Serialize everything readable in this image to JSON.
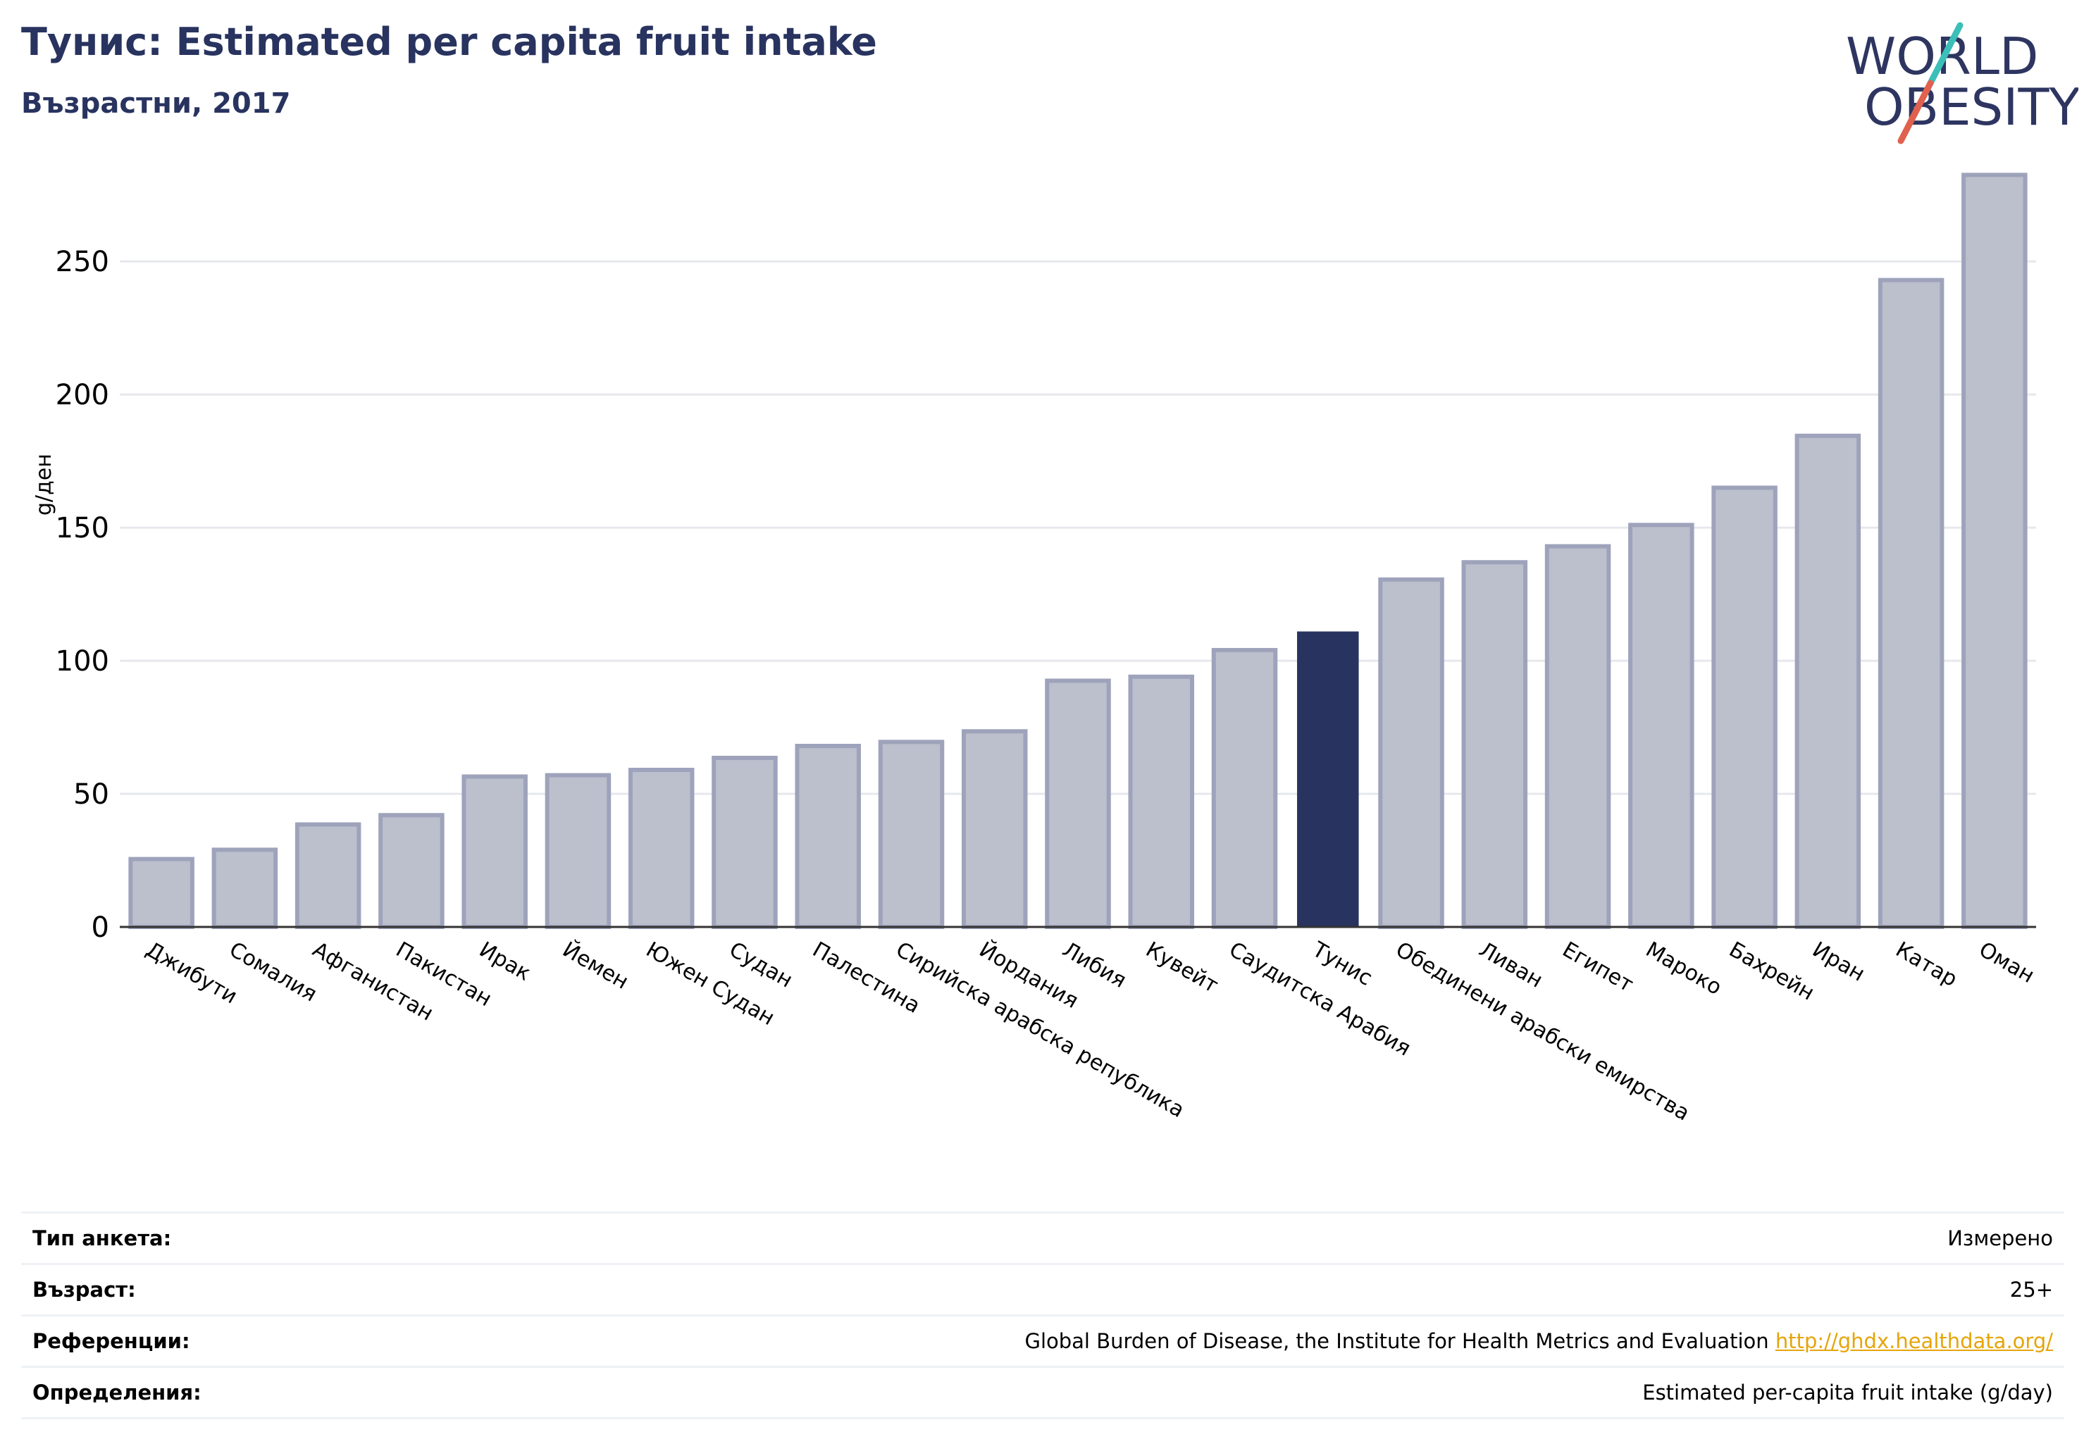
{
  "header": {
    "title": "Тунис: Estimated per capita fruit intake",
    "subtitle": "Възрастни, 2017"
  },
  "logo": {
    "line1": "WORLD",
    "line2": "OBESITY",
    "colors": {
      "text": "#2d3560",
      "slash_red": "#e0624e",
      "slash_teal": "#3bbfb8"
    }
  },
  "chart_data": {
    "type": "bar",
    "ylabel": "g/ден",
    "ylim": [
      0,
      290
    ],
    "yticks": [
      0,
      50,
      100,
      150,
      200,
      250
    ],
    "grid": true,
    "highlight": "Тунис",
    "colors": {
      "bar": "#bcbfcc",
      "bar_edge": "#9ea3bb",
      "highlight": "#28335f",
      "grid": "#e6e8ee"
    },
    "categories": [
      "Джибути",
      "Сомалия",
      "Афганистан",
      "Пакистан",
      "Ирак",
      "Йемен",
      "Южен Судан",
      "Судан",
      "Палестина",
      "Сирийска арабска република",
      "Йордания",
      "Либия",
      "Кувейт",
      "Саудитска Арабия",
      "Тунис",
      "Обединени арабски емирства",
      "Ливан",
      "Египет",
      "Мароко",
      "Бахрейн",
      "Иран",
      "Катар",
      "Оман"
    ],
    "values": [
      25.5,
      29,
      38.5,
      42,
      56.5,
      57,
      59,
      63.5,
      68,
      69.5,
      73.5,
      92.5,
      94,
      104,
      111,
      130.5,
      137,
      143,
      151,
      165,
      184.5,
      243,
      282.5
    ]
  },
  "meta": [
    {
      "label": "Тип анкета:",
      "value": "Измерено"
    },
    {
      "label": "Възраст:",
      "value": "25+"
    },
    {
      "label": "Референции:",
      "value": "Global Burden of Disease, the Institute for Health Metrics and Evaluation",
      "link": "http://ghdx.healthdata.org/"
    },
    {
      "label": "Определения:",
      "value": "Estimated per-capita fruit intake (g/day)"
    }
  ]
}
